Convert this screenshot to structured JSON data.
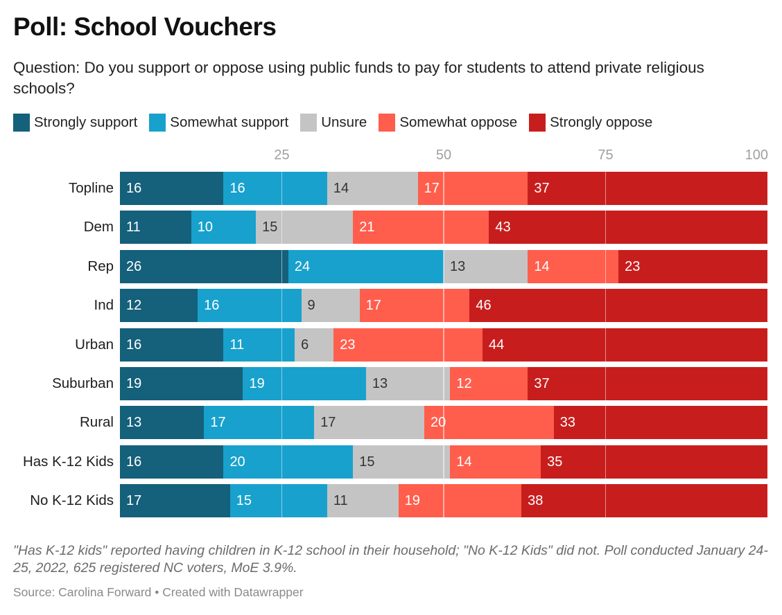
{
  "title": "Poll: School Vouchers",
  "subtitle": "Question: Do you support or oppose using public funds to pay for students to attend private religious schools?",
  "note": "\"Has K-12 kids\" reported having children in K-12 school in their household; \"No K-12 Kids\" did not. Poll conducted January 24-25, 2022, 625 registered NC voters, MoE 3.9%.",
  "source": "Source: Carolina Forward • Created with Datawrapper",
  "chart_data": {
    "type": "bar",
    "orientation": "horizontal",
    "stacked": true,
    "title": "Poll: School Vouchers",
    "xlabel": "",
    "ylabel": "",
    "xlim": [
      0,
      100
    ],
    "xticks": [
      "25",
      "50",
      "75",
      "100"
    ],
    "xtick_values": [
      25,
      50,
      75,
      100
    ],
    "grid": true,
    "legend_position": "top-left",
    "categories": [
      "Topline",
      "Dem",
      "Rep",
      "Ind",
      "Urban",
      "Suburban",
      "Rural",
      "Has K-12 Kids",
      "No K-12 Kids"
    ],
    "series": [
      {
        "name": "Strongly support",
        "color": "#15607a",
        "label_color": "#ffffff",
        "values": [
          16,
          11,
          26,
          12,
          16,
          19,
          13,
          16,
          17
        ]
      },
      {
        "name": "Somewhat support",
        "color": "#18a1cd",
        "label_color": "#ffffff",
        "values": [
          16,
          10,
          24,
          16,
          11,
          19,
          17,
          20,
          15
        ]
      },
      {
        "name": "Unsure",
        "color": "#c4c4c4",
        "label_color": "#333333",
        "values": [
          14,
          15,
          13,
          9,
          6,
          13,
          17,
          15,
          11
        ]
      },
      {
        "name": "Somewhat oppose",
        "color": "#ff5e4d",
        "label_color": "#ffffff",
        "values": [
          17,
          21,
          14,
          17,
          23,
          12,
          20,
          14,
          19
        ]
      },
      {
        "name": "Strongly oppose",
        "color": "#c71e1d",
        "label_color": "#ffffff",
        "values": [
          37,
          43,
          23,
          46,
          44,
          37,
          33,
          35,
          38
        ]
      }
    ]
  }
}
